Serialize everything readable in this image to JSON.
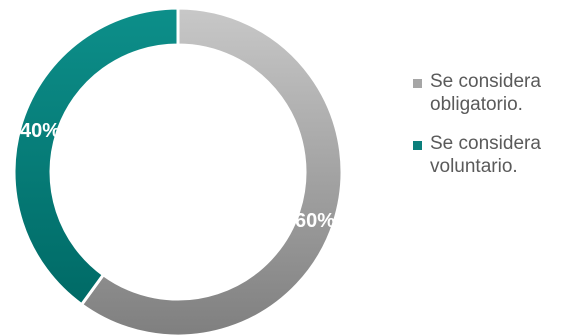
{
  "chart_data": {
    "type": "pie",
    "donut": true,
    "categories": [
      "Se considera obligatorio.",
      "Se considera voluntario."
    ],
    "values": [
      60,
      40
    ],
    "data_labels": [
      "60%",
      "40%"
    ],
    "colors": [
      "#9b9b9b",
      "#008080"
    ],
    "legend_position": "right",
    "title": ""
  }
}
